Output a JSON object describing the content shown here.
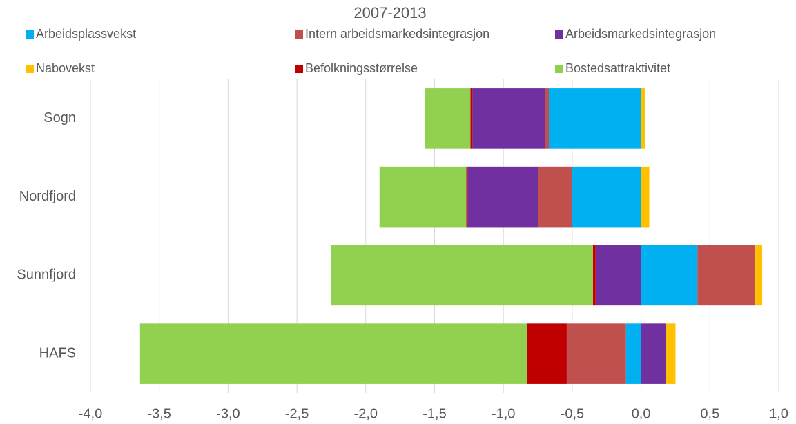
{
  "chart_data": {
    "type": "stacked-barh",
    "title": "2007-2013",
    "categories": [
      "Sogn",
      "Nordfjord",
      "Sunnfjord",
      "HAFS"
    ],
    "series": [
      {
        "name": "Arbeidsplassvekst",
        "color": "#00b0f0",
        "values": [
          -0.67,
          -0.5,
          0.41,
          -0.11
        ]
      },
      {
        "name": "Intern arbeidsmarkedsintegrasjon",
        "color": "#c0504d",
        "values": [
          -0.025,
          -0.25,
          0.42,
          -0.43
        ]
      },
      {
        "name": "Arbeidsmarkedsintegrasjon",
        "color": "#7030a0",
        "values": [
          -0.53,
          -0.51,
          -0.33,
          0.18
        ]
      },
      {
        "name": "Nabovekst",
        "color": "#ffc000",
        "values": [
          0.03,
          0.06,
          0.05,
          0.07
        ]
      },
      {
        "name": "Befolkningsstørrelse",
        "color": "#c00000",
        "values": [
          -0.015,
          -0.01,
          -0.02,
          -0.29
        ]
      },
      {
        "name": "Bostedsattraktivitet",
        "color": "#92d050",
        "values": [
          -0.33,
          -0.63,
          -1.9,
          -2.81
        ]
      }
    ],
    "xlim": [
      -4,
      1
    ],
    "xticks": [
      {
        "value": -4,
        "label": "-4,0"
      },
      {
        "value": -3.5,
        "label": "-3,5"
      },
      {
        "value": -3,
        "label": "-3,0"
      },
      {
        "value": -2.5,
        "label": "-2,5"
      },
      {
        "value": -2,
        "label": "-2,0"
      },
      {
        "value": -1.5,
        "label": "-1,5"
      },
      {
        "value": -1,
        "label": "-1,0"
      },
      {
        "value": -0.5,
        "label": "-0,5"
      },
      {
        "value": 0,
        "label": "0,0"
      },
      {
        "value": 0.5,
        "label": "0,5"
      },
      {
        "value": 1,
        "label": "1,0"
      }
    ],
    "grid": true,
    "legend": "top"
  }
}
